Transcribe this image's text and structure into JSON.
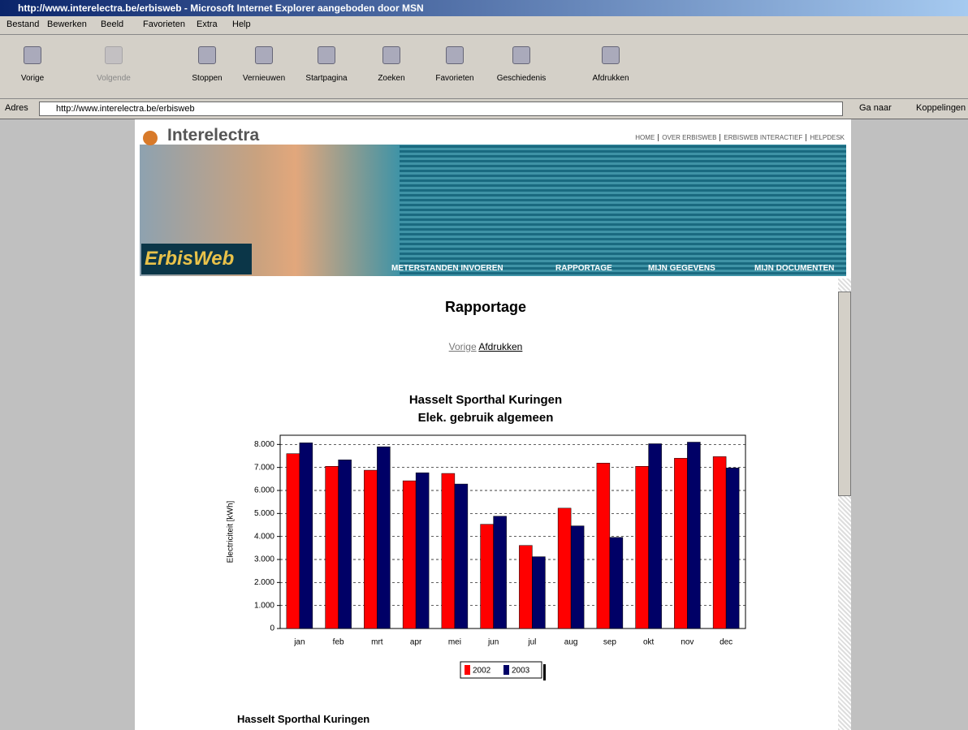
{
  "window": {
    "title": "http://www.interelectra.be/erbisweb - Microsoft Internet Explorer aangeboden door MSN"
  },
  "menu": [
    "Bestand",
    "Bewerken",
    "Beeld",
    "Favorieten",
    "Extra",
    "Help"
  ],
  "toolbar": [
    "Vorige",
    "Volgende",
    "Stoppen",
    "Vernieuwen",
    "Startpagina",
    "Zoeken",
    "Favorieten",
    "Geschiedenis",
    "Afdrukken"
  ],
  "address": {
    "label": "Adres",
    "url": "http://www.interelectra.be/erbisweb",
    "go": "Ga naar",
    "links": "Koppelingen"
  },
  "site": {
    "brand": "Interelectra",
    "logo": "ErbisWeb",
    "top_nav": [
      "HOME",
      "OVER ERBISWEB",
      "ERBISWEB INTERACTIEF",
      "HELPDESK"
    ],
    "main_nav": [
      "METERSTANDEN INVOEREN",
      "RAPPORTAGE",
      "MIJN GEGEVENS",
      "MIJN DOCUMENTEN"
    ]
  },
  "page": {
    "title": "Rapportage",
    "links": [
      "Vorige",
      "Afdrukken"
    ],
    "next_heading": "Hasselt Sporthal Kuringen"
  },
  "chart": {
    "type": "bar",
    "title": [
      "Hasselt Sporthal Kuringen",
      "Elek. gebruik algemeen"
    ],
    "y_label": "Electriciteit [kWh]",
    "categories": [
      "jan",
      "feb",
      "mrt",
      "apr",
      "mei",
      "jun",
      "jul",
      "aug",
      "sep",
      "okt",
      "nov",
      "dec"
    ],
    "series": [
      {
        "name": "2002",
        "color": "#ff0000",
        "values": [
          7600,
          7050,
          6880,
          6420,
          6740,
          4530,
          3610,
          5230,
          7190,
          7050,
          7400,
          7470
        ]
      },
      {
        "name": "2003",
        "color": "#000066",
        "values": [
          8070,
          7330,
          7900,
          6770,
          6280,
          4880,
          3120,
          4460,
          3960,
          8030,
          8100,
          6980
        ]
      }
    ],
    "ylim": [
      0,
      8400
    ],
    "yticks": [
      0,
      {
        "value": 1000,
        "label": "1.000"
      },
      {
        "value": 2000,
        "label": "2.000"
      },
      {
        "value": 3000,
        "label": "3.000"
      },
      {
        "value": 4000,
        "label": "4.000"
      },
      {
        "value": 5000,
        "label": "5.000"
      },
      {
        "value": 6000,
        "label": "6.000"
      },
      {
        "value": 7000,
        "label": "7.000"
      },
      {
        "value": 8000,
        "label": "8.000"
      }
    ],
    "grid": true
  }
}
